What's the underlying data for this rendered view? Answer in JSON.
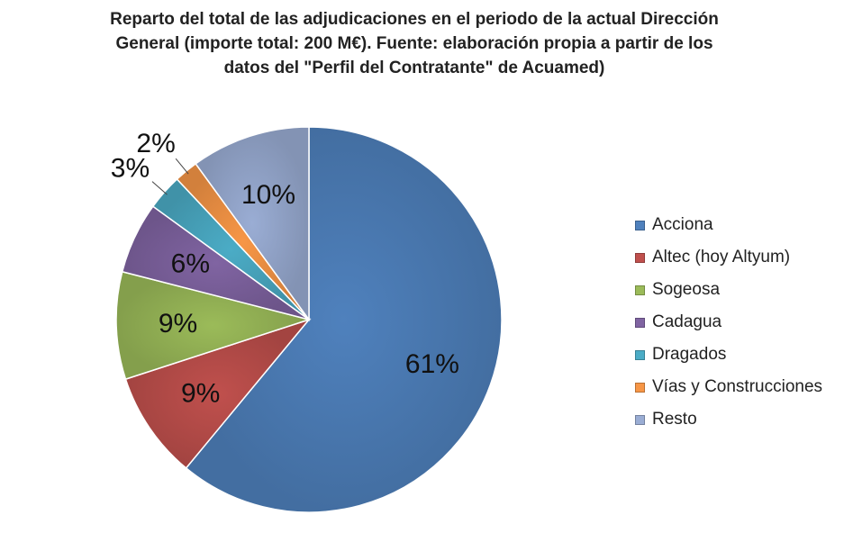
{
  "title_lines": [
    "Reparto del total de las adjudicaciones en el periodo de la actual Dirección",
    "General (importe total: 200 M€). Fuente: elaboración propia a partir de los",
    "datos del \"Perfil del Contratante\" de Acuamed)"
  ],
  "chart_data": {
    "type": "pie",
    "title": "Reparto del total de las adjudicaciones en el periodo de la actual Dirección General (importe total: 200 M€). Fuente: elaboración propia a partir de los datos del \"Perfil del Contratante\" de Acuamed)",
    "categories": [
      "Acciona",
      "Altec (hoy Altyum)",
      "Sogeosa",
      "Cadagua",
      "Dragados",
      "Vías y Construcciones",
      "Resto"
    ],
    "values": [
      61,
      9,
      9,
      6,
      3,
      2,
      10
    ],
    "labels": [
      "61%",
      "9%",
      "9%",
      "6%",
      "3%",
      "2%",
      "10%"
    ],
    "colors": [
      "#4F81BD",
      "#C0504D",
      "#9BBB59",
      "#8064A2",
      "#4BACC6",
      "#F79646",
      "#9AADD4"
    ],
    "legend_position": "right"
  }
}
